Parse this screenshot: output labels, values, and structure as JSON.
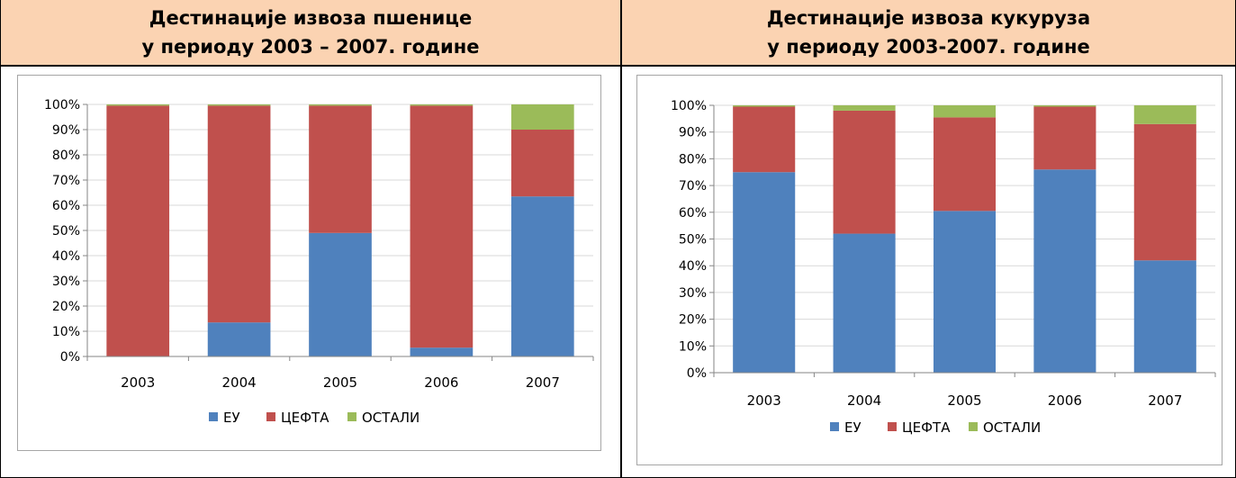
{
  "colors": {
    "eu": "#4f81bd",
    "cefta": "#c0504d",
    "other": "#9bbb59",
    "header_bg": "#fbd3b2"
  },
  "panels": [
    {
      "title_line1": "Дестинације извоза пшенице",
      "title_line2": "у периоду 2003 – 2007. године"
    },
    {
      "title_line1": "Дестинације извоза кукуруза",
      "title_line2": "у периоду 2003-2007. године"
    }
  ],
  "chart_data": [
    {
      "type": "bar",
      "stacked": "percent",
      "categories": [
        "2003",
        "2004",
        "2005",
        "2006",
        "2007"
      ],
      "y_ticks": [
        "0%",
        "10%",
        "20%",
        "30%",
        "40%",
        "50%",
        "60%",
        "70%",
        "80%",
        "90%",
        "100%"
      ],
      "ylim": [
        0,
        100
      ],
      "legend_position": "bottom",
      "series": [
        {
          "name": "ЕУ",
          "values": [
            0,
            13.5,
            49,
            3.5,
            63.5
          ]
        },
        {
          "name": "ЦЕФТА",
          "values": [
            99.5,
            86,
            50.5,
            96,
            26.5
          ]
        },
        {
          "name": "ОСТАЛИ",
          "values": [
            0.5,
            0.5,
            0.5,
            0.5,
            10
          ]
        }
      ]
    },
    {
      "type": "bar",
      "stacked": "percent",
      "categories": [
        "2003",
        "2004",
        "2005",
        "2006",
        "2007"
      ],
      "y_ticks": [
        "0%",
        "10%",
        "20%",
        "30%",
        "40%",
        "50%",
        "60%",
        "70%",
        "80%",
        "90%",
        "100%"
      ],
      "ylim": [
        0,
        100
      ],
      "legend_position": "bottom",
      "series": [
        {
          "name": "ЕУ",
          "values": [
            75,
            52,
            60.5,
            76,
            42
          ]
        },
        {
          "name": "ЦЕФТА",
          "values": [
            24.5,
            46,
            35,
            23.5,
            51
          ]
        },
        {
          "name": "ОСТАЛИ",
          "values": [
            0.5,
            2,
            4.5,
            0.5,
            7
          ]
        }
      ]
    }
  ]
}
